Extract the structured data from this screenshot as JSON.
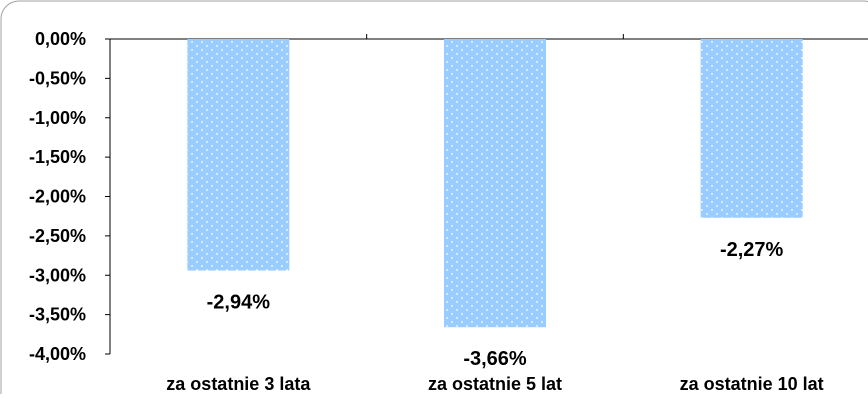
{
  "chart_data": {
    "type": "bar",
    "categories": [
      "za ostatnie 3 lata",
      "za ostatnie 5 lat",
      "za ostatnie 10 lat"
    ],
    "values": [
      -2.94,
      -3.66,
      -2.27
    ],
    "value_labels": [
      "-2,94%",
      "-3,66%",
      "-2,27%"
    ],
    "title": "",
    "xlabel": "",
    "ylabel": "",
    "ylim": [
      -4.0,
      0.0
    ],
    "y_ticks": [
      0.0,
      -0.5,
      -1.0,
      -1.5,
      -2.0,
      -2.5,
      -3.0,
      -3.5,
      -4.0
    ],
    "y_tick_labels": [
      "0,00%",
      "-0,50%",
      "-1,00%",
      "-1,50%",
      "-2,00%",
      "-2,50%",
      "-3,00%",
      "-3,50%",
      "-4,00%"
    ],
    "grid": false,
    "legend": "none",
    "bar_color": "#99ccff",
    "bar_pattern": "white-dots"
  }
}
